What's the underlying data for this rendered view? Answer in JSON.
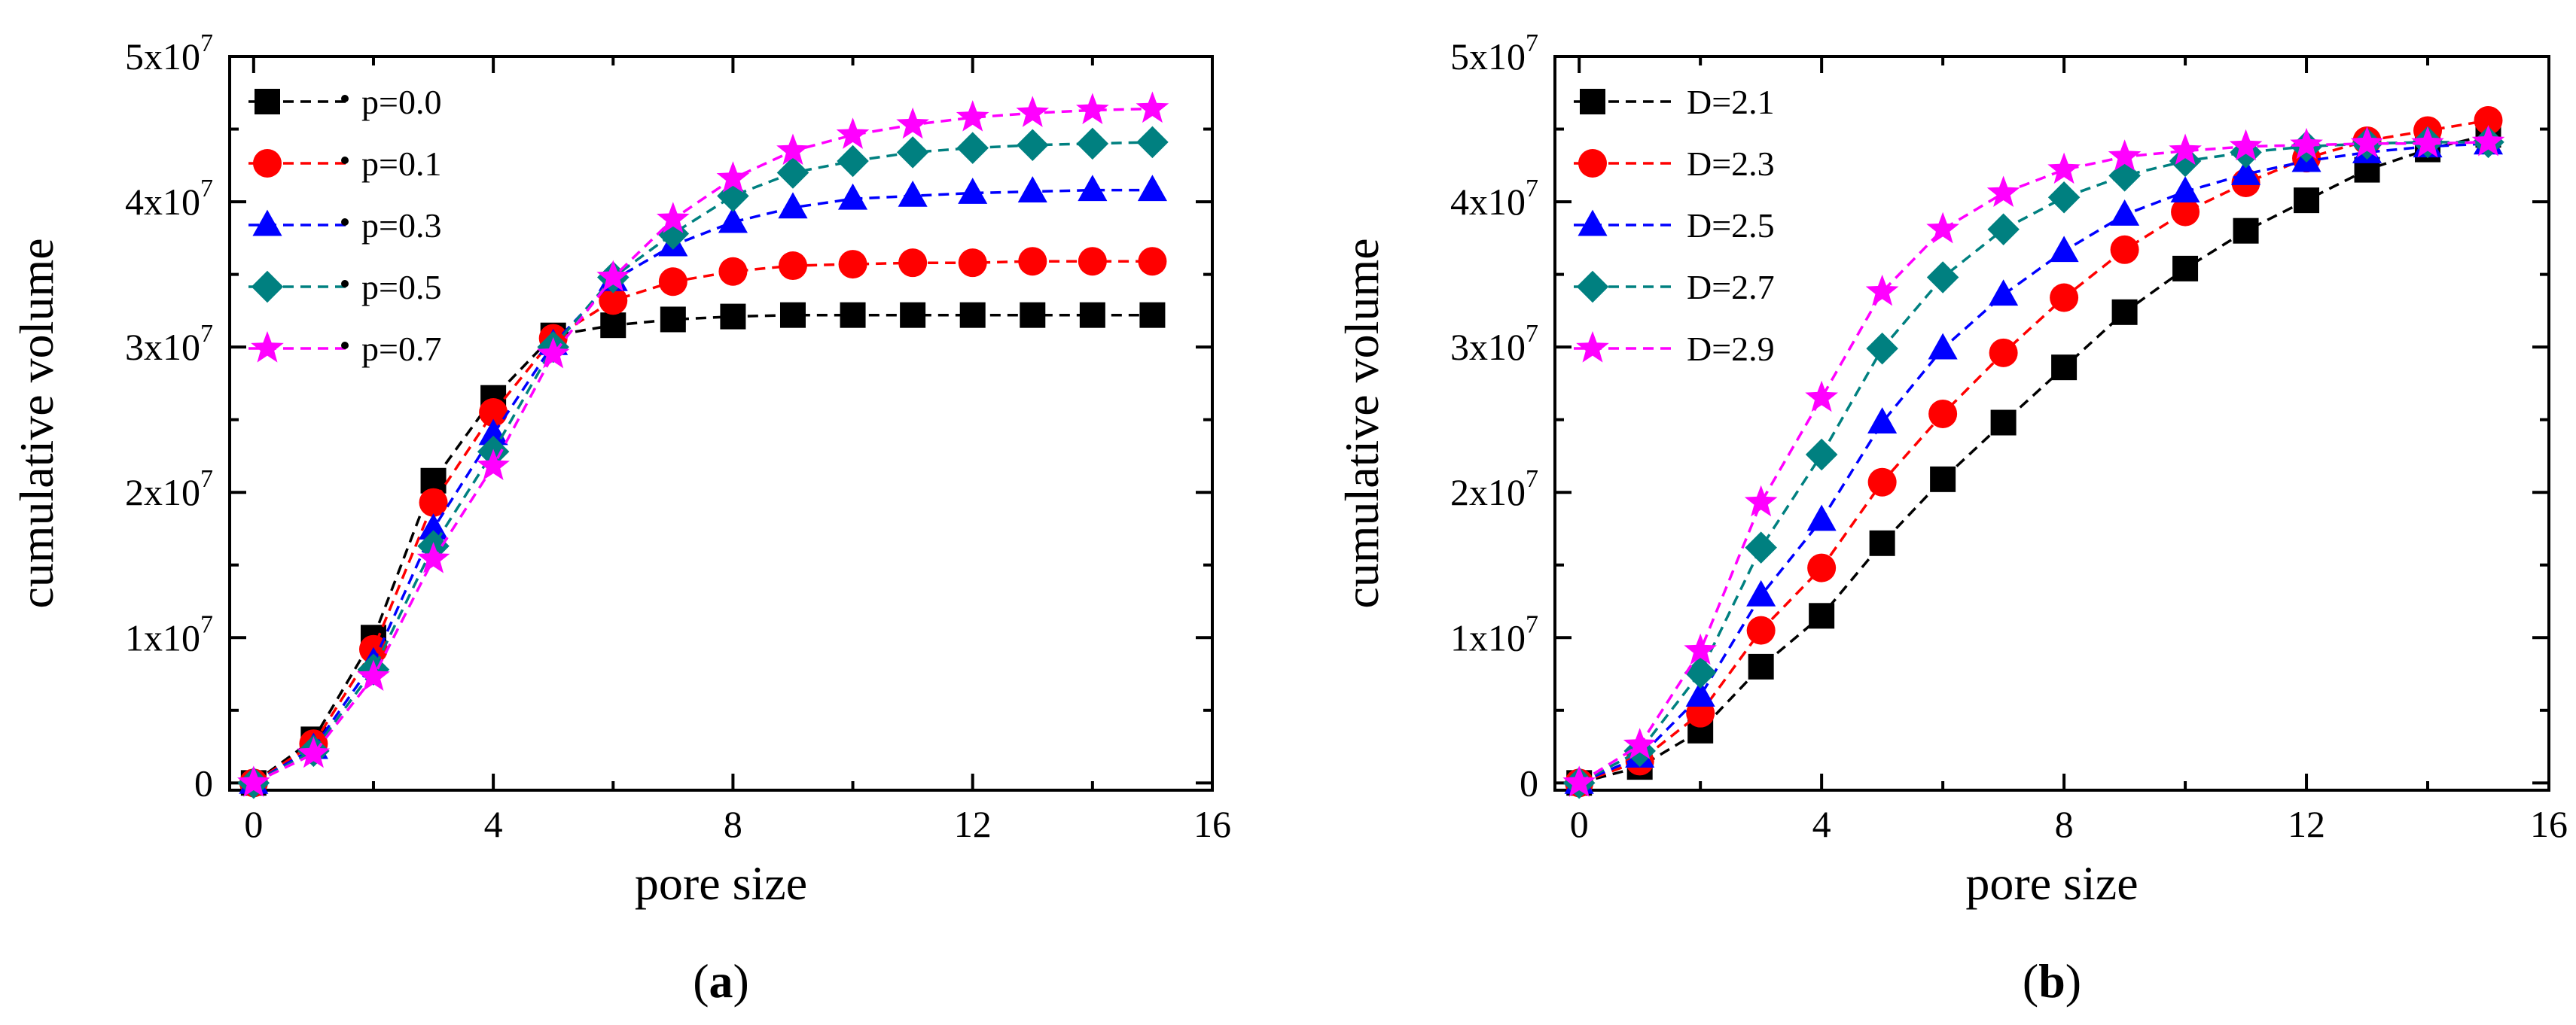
{
  "chart_data": [
    {
      "type": "line",
      "panel_label": "(a)",
      "panel_label_parts": {
        "open": "(",
        "letter": "a",
        "close": ")"
      },
      "xlabel": "pore size",
      "ylabel": "cumulative volume",
      "xlim": [
        -0.4,
        16
      ],
      "ylim": [
        -500000,
        50000000
      ],
      "xticks": [
        "0",
        "4",
        "8",
        "12",
        "16"
      ],
      "yticks": [
        {
          "base": "0",
          "exp": ""
        },
        {
          "base": "1x10",
          "exp": "7"
        },
        {
          "base": "2x10",
          "exp": "7"
        },
        {
          "base": "3x10",
          "exp": "7"
        },
        {
          "base": "4x10",
          "exp": "7"
        },
        {
          "base": "5x10",
          "exp": "7"
        }
      ],
      "x": [
        0,
        1,
        2,
        3,
        4,
        5,
        6,
        7,
        8,
        9,
        10,
        11,
        12,
        13,
        14,
        15
      ],
      "legend_position": "top-left",
      "series": [
        {
          "name": "p=0.0",
          "color": "#000000",
          "marker": "square",
          "values": [
            0,
            3000000,
            10000000,
            20800000,
            26500000,
            30800000,
            31500000,
            31900000,
            32100000,
            32200000,
            32200000,
            32200000,
            32200000,
            32200000,
            32200000,
            32200000
          ]
        },
        {
          "name": "p=0.1",
          "color": "#ff0000",
          "marker": "circle",
          "values": [
            0,
            2700000,
            9200000,
            19300000,
            25500000,
            30600000,
            33200000,
            34500000,
            35200000,
            35600000,
            35700000,
            35800000,
            35800000,
            35900000,
            35900000,
            35900000
          ]
        },
        {
          "name": "p=0.3",
          "color": "#0000ff",
          "marker": "triangle",
          "values": [
            0,
            2400000,
            8300000,
            17500000,
            24000000,
            30200000,
            34600000,
            37000000,
            38600000,
            39600000,
            40200000,
            40400000,
            40600000,
            40700000,
            40800000,
            40800000
          ]
        },
        {
          "name": "p=0.5",
          "color": "#008080",
          "marker": "diamond",
          "values": [
            0,
            2200000,
            7800000,
            16300000,
            22800000,
            30000000,
            34800000,
            37800000,
            40400000,
            42000000,
            42800000,
            43400000,
            43700000,
            43900000,
            44000000,
            44100000
          ]
        },
        {
          "name": "p=0.7",
          "color": "#ff00ff",
          "marker": "star",
          "values": [
            0,
            2000000,
            7300000,
            15400000,
            21800000,
            29500000,
            34800000,
            38800000,
            41600000,
            43500000,
            44600000,
            45300000,
            45800000,
            46100000,
            46300000,
            46400000
          ]
        }
      ]
    },
    {
      "type": "line",
      "panel_label": "(b)",
      "panel_label_parts": {
        "open": "(",
        "letter": "b",
        "close": ")"
      },
      "xlabel": "pore size",
      "ylabel": "cumulative volume",
      "xlim": [
        -0.4,
        16
      ],
      "ylim": [
        -500000,
        50000000
      ],
      "xticks": [
        "0",
        "4",
        "8",
        "12",
        "16"
      ],
      "yticks": [
        {
          "base": "0",
          "exp": ""
        },
        {
          "base": "1x10",
          "exp": "7"
        },
        {
          "base": "2x10",
          "exp": "7"
        },
        {
          "base": "3x10",
          "exp": "7"
        },
        {
          "base": "4x10",
          "exp": "7"
        },
        {
          "base": "5x10",
          "exp": "7"
        }
      ],
      "x": [
        0,
        1,
        2,
        3,
        4,
        5,
        6,
        7,
        8,
        9,
        10,
        11,
        12,
        13,
        14,
        15
      ],
      "legend_position": "top-left",
      "series": [
        {
          "name": "D=2.1",
          "color": "#000000",
          "marker": "square",
          "values": [
            0,
            1100000,
            3600000,
            8000000,
            11500000,
            16500000,
            20900000,
            24800000,
            28600000,
            32400000,
            35400000,
            38000000,
            40100000,
            42200000,
            43600000,
            44600000
          ]
        },
        {
          "name": "D=2.3",
          "color": "#ff0000",
          "marker": "circle",
          "values": [
            0,
            1500000,
            4800000,
            10500000,
            14800000,
            20700000,
            25400000,
            29600000,
            33400000,
            36700000,
            39300000,
            41300000,
            43000000,
            44200000,
            44900000,
            45600000
          ]
        },
        {
          "name": "D=2.5",
          "color": "#0000ff",
          "marker": "triangle",
          "values": [
            0,
            1800000,
            6000000,
            12900000,
            18100000,
            24800000,
            29900000,
            33600000,
            36600000,
            39100000,
            40700000,
            41900000,
            42800000,
            43400000,
            43800000,
            44000000
          ]
        },
        {
          "name": "D=2.7",
          "color": "#008080",
          "marker": "diamond",
          "values": [
            0,
            2200000,
            7600000,
            16200000,
            22600000,
            29900000,
            34800000,
            38100000,
            40300000,
            41800000,
            42800000,
            43400000,
            43800000,
            44000000,
            44100000,
            44100000
          ]
        },
        {
          "name": "D=2.9",
          "color": "#ff00ff",
          "marker": "star",
          "values": [
            0,
            2600000,
            9100000,
            19300000,
            26500000,
            33800000,
            38100000,
            40600000,
            42200000,
            43100000,
            43500000,
            43800000,
            43900000,
            44000000,
            44000000,
            44100000
          ]
        }
      ]
    }
  ]
}
